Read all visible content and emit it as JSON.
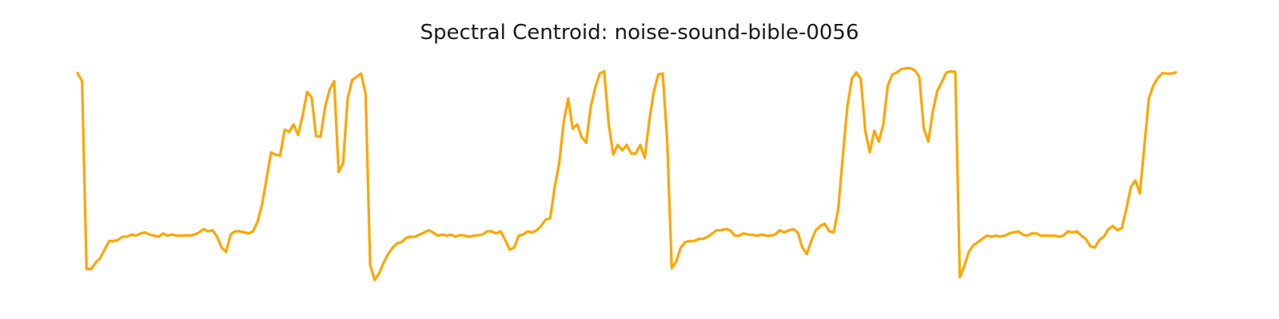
{
  "chart_data": {
    "type": "line",
    "title": "Spectral Centroid: noise-sound-bible-0056",
    "xlabel": "",
    "ylabel": "",
    "axes_visible": false,
    "grid": false,
    "line_color": "#FFA500",
    "x_range": [
      0,
      207
    ],
    "y_range": [
      0,
      1
    ],
    "series": [
      {
        "values": [
          0.958,
          0.92,
          0.05,
          0.05,
          0.08,
          0.1,
          0.14,
          0.18,
          0.18,
          0.185,
          0.2,
          0.2,
          0.21,
          0.205,
          0.215,
          0.22,
          0.21,
          0.205,
          0.2,
          0.215,
          0.205,
          0.21,
          0.205,
          0.205,
          0.207,
          0.205,
          0.21,
          0.22,
          0.235,
          0.225,
          0.23,
          0.2,
          0.15,
          0.13,
          0.21,
          0.225,
          0.225,
          0.22,
          0.215,
          0.225,
          0.27,
          0.35,
          0.47,
          0.59,
          0.58,
          0.575,
          0.695,
          0.685,
          0.72,
          0.67,
          0.76,
          0.87,
          0.845,
          0.665,
          0.663,
          0.8,
          0.88,
          0.92,
          0.5,
          0.54,
          0.84,
          0.925,
          0.94,
          0.955,
          0.86,
          0.07,
          0.0,
          0.03,
          0.08,
          0.12,
          0.15,
          0.17,
          0.175,
          0.195,
          0.2,
          0.2,
          0.21,
          0.22,
          0.23,
          0.22,
          0.205,
          0.21,
          0.205,
          0.21,
          0.2,
          0.208,
          0.205,
          0.2,
          0.205,
          0.207,
          0.21,
          0.225,
          0.225,
          0.215,
          0.225,
          0.185,
          0.14,
          0.15,
          0.205,
          0.21,
          0.225,
          0.22,
          0.23,
          0.25,
          0.28,
          0.285,
          0.43,
          0.54,
          0.73,
          0.84,
          0.7,
          0.72,
          0.66,
          0.635,
          0.8,
          0.89,
          0.955,
          0.965,
          0.72,
          0.58,
          0.625,
          0.6,
          0.625,
          0.585,
          0.585,
          0.625,
          0.565,
          0.735,
          0.87,
          0.95,
          0.955,
          0.64,
          0.055,
          0.085,
          0.15,
          0.175,
          0.18,
          0.18,
          0.19,
          0.19,
          0.2,
          0.215,
          0.23,
          0.23,
          0.235,
          0.23,
          0.205,
          0.205,
          0.215,
          0.21,
          0.208,
          0.205,
          0.21,
          0.205,
          0.205,
          0.21,
          0.23,
          0.22,
          0.23,
          0.235,
          0.22,
          0.15,
          0.12,
          0.18,
          0.23,
          0.25,
          0.26,
          0.225,
          0.22,
          0.33,
          0.57,
          0.8,
          0.93,
          0.96,
          0.93,
          0.69,
          0.59,
          0.69,
          0.64,
          0.72,
          0.9,
          0.95,
          0.96,
          0.975,
          0.98,
          0.98,
          0.97,
          0.94,
          0.7,
          0.64,
          0.78,
          0.875,
          0.915,
          0.96,
          0.965,
          0.963,
          0.013,
          0.065,
          0.13,
          0.16,
          0.175,
          0.19,
          0.205,
          0.2,
          0.205,
          0.2,
          0.205,
          0.215,
          0.22,
          0.225,
          0.21,
          0.205,
          0.215,
          0.215,
          0.205,
          0.205,
          0.205,
          0.205,
          0.2,
          0.205,
          0.225,
          0.22,
          0.225,
          0.205,
          0.19,
          0.155,
          0.15,
          0.185,
          0.2,
          0.235,
          0.25,
          0.23,
          0.24,
          0.33,
          0.43,
          0.46,
          0.4,
          0.62,
          0.84,
          0.9,
          0.935,
          0.957,
          0.955,
          0.955,
          0.96
        ]
      }
    ]
  }
}
